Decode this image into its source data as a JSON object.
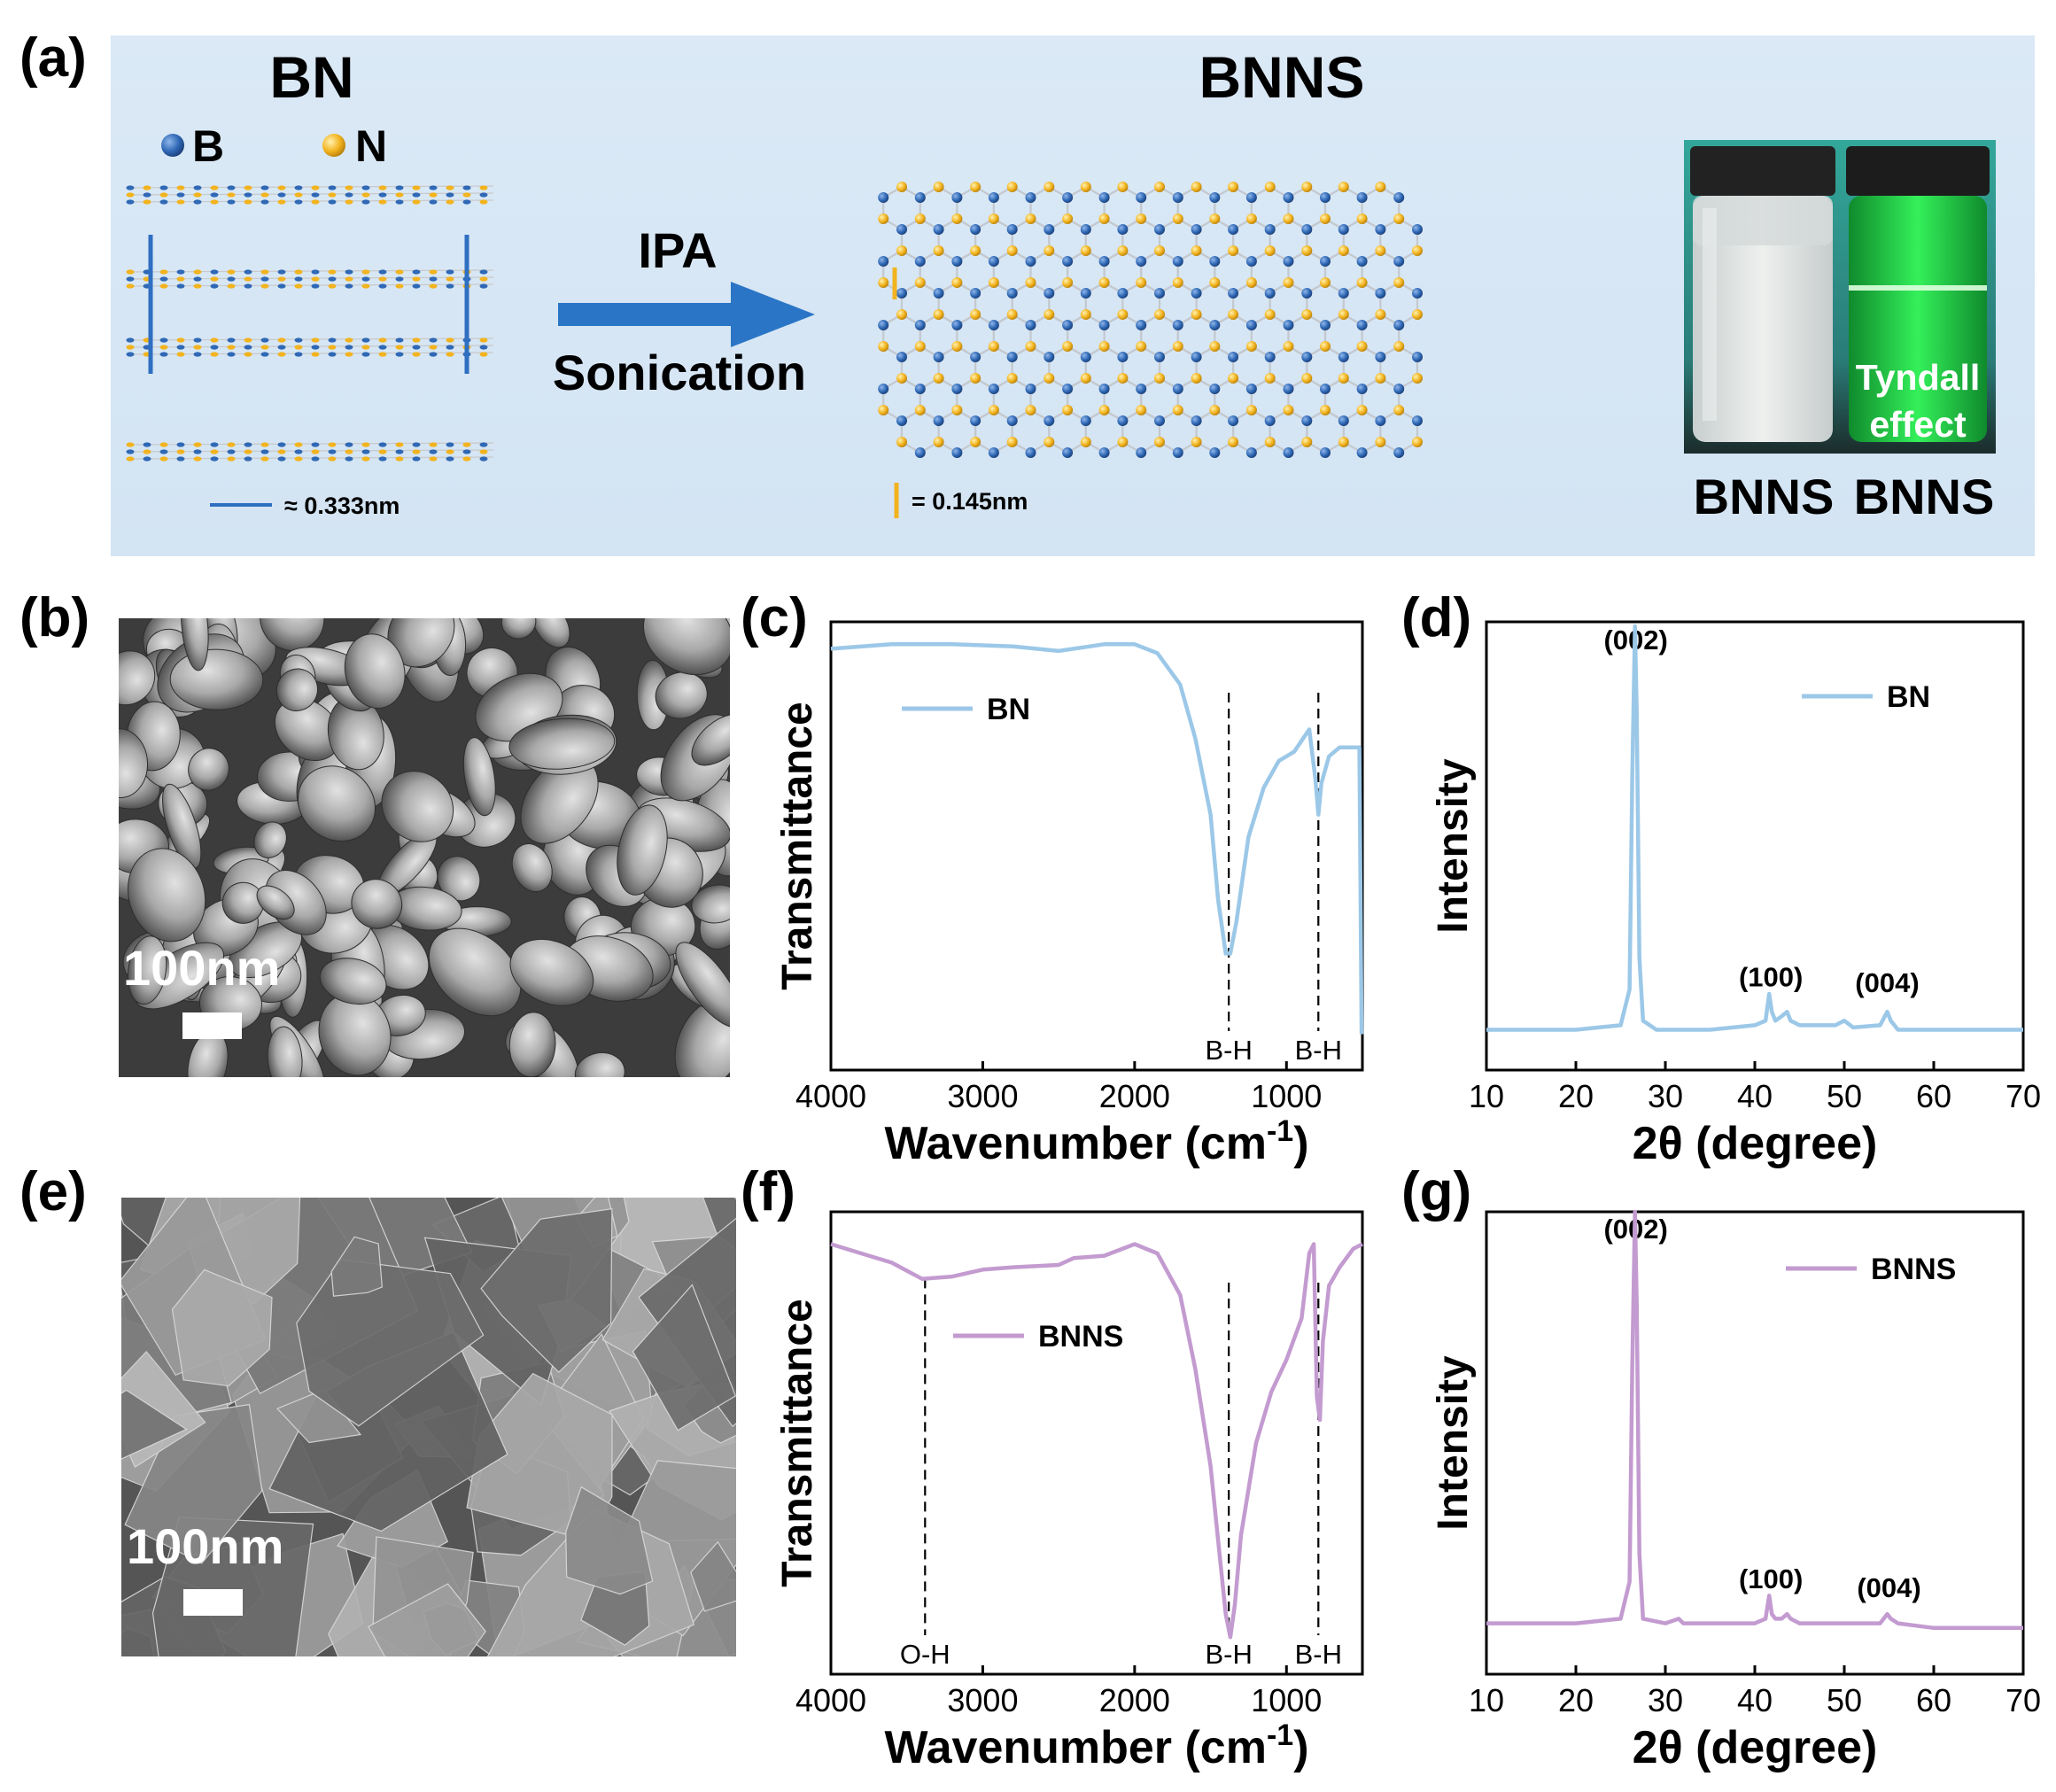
{
  "figure": {
    "panel_labels": {
      "a": "(a)",
      "b": "(b)",
      "c": "(c)",
      "d": "(d)",
      "e": "(e)",
      "f": "(f)",
      "g": "(g)"
    },
    "scheme": {
      "bn_title": "BN",
      "bnns_title": "BNNS",
      "legend_b": "B",
      "legend_n": "N",
      "arrow_top": "IPA",
      "arrow_bottom": "Sonication",
      "bn_spacing": "≈ 0.333nm",
      "bnns_spacing": "= 0.145nm",
      "vial_left_caption": "BNNS",
      "vial_right_caption": "BNNS",
      "tyndall_line1": "Tyndall",
      "tyndall_line2": "effect",
      "colors": {
        "boron": "#2f68b5",
        "nitrogen": "#f2b31e",
        "background": "#d7e6f4",
        "arrow": "#2a75c6"
      }
    },
    "sem": {
      "b_scale": "100nm",
      "e_scale": "100nm"
    }
  },
  "chart_data": [
    {
      "id": "c",
      "type": "line",
      "xlabel": "Wavenumber (cm-1)",
      "ylabel": "Transmittance",
      "xlim": [
        4000,
        500
      ],
      "xticks": [
        4000,
        3000,
        2000,
        1000
      ],
      "ylim": [
        0,
        1
      ],
      "series": [
        {
          "name": "BN",
          "color": "#9cc8e8",
          "x": [
            4000,
            3600,
            3200,
            2800,
            2500,
            2200,
            2000,
            1850,
            1700,
            1600,
            1500,
            1450,
            1400,
            1370,
            1330,
            1250,
            1150,
            1050,
            950,
            850,
            810,
            790,
            770,
            720,
            650,
            560,
            520,
            505
          ],
          "y": [
            0.94,
            0.95,
            0.95,
            0.945,
            0.935,
            0.95,
            0.95,
            0.93,
            0.86,
            0.74,
            0.57,
            0.38,
            0.26,
            0.26,
            0.33,
            0.52,
            0.63,
            0.69,
            0.71,
            0.76,
            0.65,
            0.57,
            0.64,
            0.7,
            0.72,
            0.72,
            0.72,
            0.08
          ]
        }
      ],
      "annotations": [
        {
          "x": 1380,
          "label": "B-H"
        },
        {
          "x": 790,
          "label": "B-H"
        }
      ]
    },
    {
      "id": "d",
      "type": "line",
      "xlabel": "2θ (degree)",
      "ylabel": "Intensity",
      "xlim": [
        10,
        70
      ],
      "xticks": [
        10,
        20,
        30,
        40,
        50,
        60,
        70
      ],
      "ylim": [
        0,
        1
      ],
      "series": [
        {
          "name": "BN",
          "color": "#9cc8e8",
          "x": [
            10,
            20,
            25,
            26,
            26.3,
            26.6,
            26.8,
            27.1,
            27.5,
            29,
            35,
            40,
            41.2,
            41.6,
            41.9,
            42.3,
            43,
            43.6,
            44,
            45,
            49,
            50,
            51,
            54,
            54.8,
            55.2,
            56,
            60,
            70
          ],
          "y": [
            0.09,
            0.09,
            0.1,
            0.18,
            0.65,
            0.99,
            0.8,
            0.25,
            0.11,
            0.09,
            0.09,
            0.1,
            0.11,
            0.17,
            0.13,
            0.11,
            0.12,
            0.13,
            0.11,
            0.1,
            0.1,
            0.11,
            0.095,
            0.1,
            0.13,
            0.11,
            0.09,
            0.09,
            0.09
          ]
        }
      ],
      "annotations": [
        {
          "x": 26.7,
          "label": "(002)"
        },
        {
          "x": 41.8,
          "label": "(100)"
        },
        {
          "x": 54.8,
          "label": "(004)"
        }
      ]
    },
    {
      "id": "f",
      "type": "line",
      "xlabel": "Wavenumber (cm-1)",
      "ylabel": "Transmittance",
      "xlim": [
        4000,
        500
      ],
      "xticks": [
        4000,
        3000,
        2000,
        1000
      ],
      "ylim": [
        0,
        1
      ],
      "series": [
        {
          "name": "BNNS",
          "color": "#c39bd0",
          "x": [
            4000,
            3800,
            3600,
            3400,
            3200,
            3000,
            2800,
            2500,
            2400,
            2200,
            2000,
            1850,
            1700,
            1600,
            1500,
            1450,
            1400,
            1370,
            1340,
            1300,
            1200,
            1100,
            1000,
            900,
            850,
            820,
            800,
            780,
            760,
            720,
            650,
            560,
            500
          ],
          "y": [
            0.93,
            0.91,
            0.89,
            0.855,
            0.86,
            0.875,
            0.88,
            0.885,
            0.9,
            0.905,
            0.93,
            0.91,
            0.82,
            0.66,
            0.45,
            0.29,
            0.13,
            0.08,
            0.15,
            0.3,
            0.5,
            0.61,
            0.68,
            0.77,
            0.91,
            0.93,
            0.6,
            0.55,
            0.72,
            0.84,
            0.88,
            0.92,
            0.93
          ]
        }
      ],
      "annotations": [
        {
          "x": 3380,
          "label": "O-H"
        },
        {
          "x": 1380,
          "label": "B-H"
        },
        {
          "x": 790,
          "label": "B-H"
        }
      ]
    },
    {
      "id": "g",
      "type": "line",
      "xlabel": "2θ (degree)",
      "ylabel": "Intensity",
      "xlim": [
        10,
        70
      ],
      "xticks": [
        10,
        20,
        30,
        40,
        50,
        60,
        70
      ],
      "ylim": [
        0,
        1
      ],
      "series": [
        {
          "name": "BNNS",
          "color": "#c39bd0",
          "x": [
            10,
            20,
            25,
            26,
            26.3,
            26.6,
            26.8,
            27.1,
            27.5,
            30,
            31.5,
            32,
            35,
            40,
            41.2,
            41.6,
            41.9,
            42.3,
            43,
            43.6,
            44,
            45,
            50,
            54,
            54.8,
            55.2,
            56,
            60,
            70
          ],
          "y": [
            0.11,
            0.11,
            0.12,
            0.2,
            0.66,
            1.0,
            0.8,
            0.26,
            0.12,
            0.11,
            0.12,
            0.11,
            0.11,
            0.11,
            0.12,
            0.17,
            0.13,
            0.12,
            0.12,
            0.13,
            0.12,
            0.11,
            0.11,
            0.11,
            0.13,
            0.12,
            0.11,
            0.1,
            0.1
          ]
        }
      ],
      "annotations": [
        {
          "x": 26.7,
          "label": "(002)"
        },
        {
          "x": 41.8,
          "label": "(100)"
        },
        {
          "x": 55,
          "label": "(004)"
        }
      ]
    }
  ]
}
